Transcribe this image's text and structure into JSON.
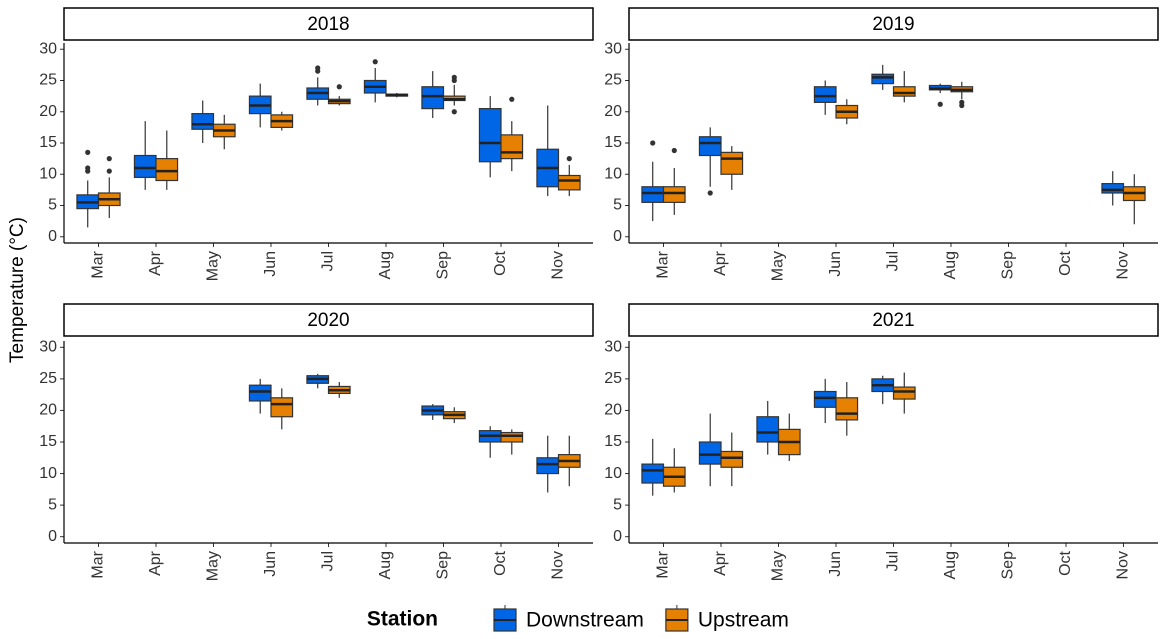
{
  "y_label": "Temperature (°C)",
  "legend": {
    "title": "Station",
    "entries": [
      {
        "name": "Downstream",
        "color": "#0066e6"
      },
      {
        "name": "Upstream",
        "color": "#e68000"
      }
    ]
  },
  "chart_data": [
    {
      "type": "box",
      "title": "2018",
      "categories": [
        "Mar",
        "Apr",
        "May",
        "Jun",
        "Jul",
        "Aug",
        "Sep",
        "Oct",
        "Nov"
      ],
      "ylim": [
        -1,
        31
      ],
      "yticks": [
        0,
        5,
        10,
        15,
        20,
        25,
        30
      ],
      "series": [
        {
          "values": [
            {
              "min": 1.5,
              "q1": 4.5,
              "median": 5.5,
              "q3": 6.7,
              "max": 9,
              "outliers": [
                10.5,
                11,
                13.5
              ]
            },
            {
              "min": 7.5,
              "q1": 9.5,
              "median": 11,
              "q3": 13,
              "max": 18.5
            },
            {
              "min": 15,
              "q1": 17.2,
              "median": 18,
              "q3": 19.7,
              "max": 21.8
            },
            {
              "min": 17.5,
              "q1": 19.7,
              "median": 21,
              "q3": 22.5,
              "max": 24.5
            },
            {
              "min": 21,
              "q1": 22,
              "median": 23,
              "q3": 23.8,
              "max": 25.5,
              "outliers": [
                26.5,
                27
              ]
            },
            {
              "min": 21.5,
              "q1": 23,
              "median": 24,
              "q3": 25,
              "max": 27,
              "outliers": [
                28
              ]
            },
            {
              "min": 19,
              "q1": 20.5,
              "median": 22.5,
              "q3": 24,
              "max": 26.5
            },
            {
              "min": 9.5,
              "q1": 12,
              "median": 15,
              "q3": 20.5,
              "max": 22.5
            },
            {
              "min": 6.5,
              "q1": 8,
              "median": 11,
              "q3": 14,
              "max": 21
            }
          ]
        },
        {
          "values": [
            {
              "min": 3,
              "q1": 5,
              "median": 6,
              "q3": 7,
              "max": 9.5,
              "outliers": [
                10.5,
                12.5
              ]
            },
            {
              "min": 7.5,
              "q1": 9,
              "median": 10.5,
              "q3": 12.5,
              "max": 17
            },
            {
              "min": 14,
              "q1": 16,
              "median": 17,
              "q3": 18,
              "max": 19.5
            },
            {
              "min": 17,
              "q1": 17.5,
              "median": 18.5,
              "q3": 19.5,
              "max": 20
            },
            {
              "min": 21,
              "q1": 21.3,
              "median": 21.7,
              "q3": 22,
              "max": 22.5,
              "outliers": [
                24
              ]
            },
            {
              "min": 22.3,
              "q1": 22.5,
              "median": 22.7,
              "q3": 22.8,
              "max": 23
            },
            {
              "min": 21,
              "q1": 21.8,
              "median": 22,
              "q3": 22.5,
              "max": 24.3,
              "outliers": [
                20,
                25,
                25.5
              ]
            },
            {
              "min": 10.5,
              "q1": 12.5,
              "median": 13.5,
              "q3": 16.3,
              "max": 18.5,
              "outliers": [
                22
              ]
            },
            {
              "min": 6.5,
              "q1": 7.5,
              "median": 9,
              "q3": 9.8,
              "max": 11.5,
              "outliers": [
                12.5
              ]
            }
          ]
        }
      ]
    },
    {
      "type": "box",
      "title": "2019",
      "categories": [
        "Mar",
        "Apr",
        "May",
        "Jun",
        "Jul",
        "Aug",
        "Sep",
        "Oct",
        "Nov"
      ],
      "ylim": [
        -1,
        31
      ],
      "yticks": [
        0,
        5,
        10,
        15,
        20,
        25,
        30
      ],
      "series": [
        {
          "values": [
            {
              "min": 2.5,
              "q1": 5.5,
              "median": 7,
              "q3": 8,
              "max": 12,
              "outliers": [
                15
              ]
            },
            {
              "min": 8,
              "q1": 13,
              "median": 15,
              "q3": 16,
              "max": 17.5,
              "outliers": [
                7
              ]
            },
            null,
            {
              "min": 19.5,
              "q1": 21.5,
              "median": 22.5,
              "q3": 24,
              "max": 25
            },
            {
              "min": 23.5,
              "q1": 24.5,
              "median": 25.5,
              "q3": 26,
              "max": 27.5
            },
            {
              "min": 23,
              "q1": 23.5,
              "median": 23.7,
              "q3": 24.2,
              "max": 24.5,
              "outliers": [
                21.2
              ]
            },
            null,
            null,
            {
              "min": 5,
              "q1": 7,
              "median": 7.5,
              "q3": 8.5,
              "max": 10.5
            }
          ]
        },
        {
          "values": [
            {
              "min": 3.5,
              "q1": 5.5,
              "median": 7,
              "q3": 8,
              "max": 11,
              "outliers": [
                13.8
              ]
            },
            {
              "min": 7.5,
              "q1": 10,
              "median": 12.5,
              "q3": 13.5,
              "max": 14.5
            },
            null,
            {
              "min": 18,
              "q1": 19,
              "median": 20,
              "q3": 21,
              "max": 22
            },
            {
              "min": 21.5,
              "q1": 22.5,
              "median": 23,
              "q3": 24,
              "max": 26.5
            },
            {
              "min": 22,
              "q1": 23.2,
              "median": 23.5,
              "q3": 24,
              "max": 24.8,
              "outliers": [
                21,
                21.5
              ]
            },
            null,
            null,
            {
              "min": 2,
              "q1": 5.8,
              "median": 7,
              "q3": 8,
              "max": 10
            }
          ]
        }
      ]
    },
    {
      "type": "box",
      "title": "2020",
      "categories": [
        "Mar",
        "Apr",
        "May",
        "Jun",
        "Jul",
        "Aug",
        "Sep",
        "Oct",
        "Nov"
      ],
      "ylim": [
        -1,
        31
      ],
      "yticks": [
        0,
        5,
        10,
        15,
        20,
        25,
        30
      ],
      "series": [
        {
          "values": [
            null,
            null,
            null,
            {
              "min": 19.5,
              "q1": 21.5,
              "median": 23,
              "q3": 24,
              "max": 25
            },
            {
              "min": 23.5,
              "q1": 24.3,
              "median": 25,
              "q3": 25.5,
              "max": 25.8
            },
            null,
            {
              "min": 18.5,
              "q1": 19.3,
              "median": 20,
              "q3": 20.7,
              "max": 21
            },
            {
              "min": 12.5,
              "q1": 15,
              "median": 16,
              "q3": 16.8,
              "max": 17.5
            },
            {
              "min": 7,
              "q1": 10,
              "median": 11.5,
              "q3": 12.5,
              "max": 16
            }
          ]
        },
        {
          "values": [
            null,
            null,
            null,
            {
              "min": 17,
              "q1": 19,
              "median": 21,
              "q3": 22,
              "max": 23.5
            },
            {
              "min": 22,
              "q1": 22.7,
              "median": 23.2,
              "q3": 23.8,
              "max": 24.5
            },
            null,
            {
              "min": 18,
              "q1": 18.7,
              "median": 19.3,
              "q3": 19.8,
              "max": 20.5
            },
            {
              "min": 13,
              "q1": 15,
              "median": 16,
              "q3": 16.5,
              "max": 17
            },
            {
              "min": 8,
              "q1": 11,
              "median": 12,
              "q3": 13,
              "max": 16
            }
          ]
        }
      ]
    },
    {
      "type": "box",
      "title": "2021",
      "categories": [
        "Mar",
        "Apr",
        "May",
        "Jun",
        "Jul",
        "Aug",
        "Sep",
        "Oct",
        "Nov"
      ],
      "ylim": [
        -1,
        31
      ],
      "yticks": [
        0,
        5,
        10,
        15,
        20,
        25,
        30
      ],
      "series": [
        {
          "values": [
            {
              "min": 6.5,
              "q1": 8.5,
              "median": 10.5,
              "q3": 11.5,
              "max": 15.5
            },
            {
              "min": 8,
              "q1": 11.5,
              "median": 13,
              "q3": 15,
              "max": 19.5
            },
            {
              "min": 13,
              "q1": 15,
              "median": 16.5,
              "q3": 19,
              "max": 21.5
            },
            {
              "min": 18,
              "q1": 20.5,
              "median": 22,
              "q3": 23,
              "max": 25
            },
            {
              "min": 21,
              "q1": 23,
              "median": 24,
              "q3": 25,
              "max": 25.5
            },
            null,
            null,
            null,
            null
          ]
        },
        {
          "values": [
            {
              "min": 7,
              "q1": 8,
              "median": 9.5,
              "q3": 11,
              "max": 14
            },
            {
              "min": 8,
              "q1": 11,
              "median": 12.5,
              "q3": 13.5,
              "max": 16.5
            },
            {
              "min": 12,
              "q1": 13,
              "median": 15,
              "q3": 17,
              "max": 19.5
            },
            {
              "min": 16,
              "q1": 18.5,
              "median": 19.5,
              "q3": 22,
              "max": 24.5
            },
            {
              "min": 19.5,
              "q1": 21.8,
              "median": 23,
              "q3": 23.7,
              "max": 26
            },
            null,
            null,
            null,
            null
          ]
        }
      ]
    }
  ]
}
